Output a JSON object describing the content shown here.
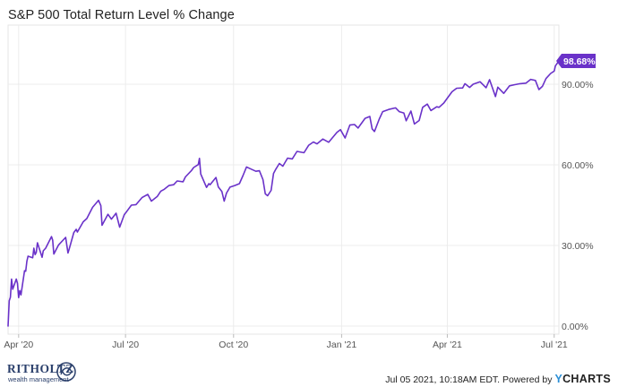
{
  "chart_data": {
    "type": "line",
    "title": "S&P 500 Total Return Level % Change",
    "xlabel": "",
    "ylabel": "",
    "x_start": "2020-03-23",
    "x_end": "2021-07-05",
    "x_ticks": [
      {
        "label": "Apr '20",
        "date": "2020-04-01"
      },
      {
        "label": "Jul '20",
        "date": "2020-07-01"
      },
      {
        "label": "Oct '20",
        "date": "2020-10-01"
      },
      {
        "label": "Jan '21",
        "date": "2021-01-01"
      },
      {
        "label": "Apr '21",
        "date": "2021-04-01"
      },
      {
        "label": "Jul '21",
        "date": "2021-07-01"
      }
    ],
    "y_ticks": [
      {
        "label": "0.00%",
        "value": 0
      },
      {
        "label": "30.00%",
        "value": 30
      },
      {
        "label": "60.00%",
        "value": 60
      },
      {
        "label": "90.00%",
        "value": 90
      }
    ],
    "ylim": [
      -3,
      112
    ],
    "grid": true,
    "line_color": "#6a32c9",
    "last_value_label": "98.68%",
    "series": [
      {
        "points": [
          [
            "2020-03-23",
            0.0
          ],
          [
            "2020-03-24",
            9.4
          ],
          [
            "2020-03-25",
            10.7
          ],
          [
            "2020-03-26",
            17.5
          ],
          [
            "2020-03-27",
            13.7
          ],
          [
            "2020-03-30",
            17.5
          ],
          [
            "2020-03-31",
            15.9
          ],
          [
            "2020-04-01",
            10.6
          ],
          [
            "2020-04-02",
            13.2
          ],
          [
            "2020-04-03",
            11.6
          ],
          [
            "2020-04-06",
            20.6
          ],
          [
            "2020-04-07",
            20.4
          ],
          [
            "2020-04-08",
            24.1
          ],
          [
            "2020-04-09",
            26.0
          ],
          [
            "2020-04-13",
            25.4
          ],
          [
            "2020-04-14",
            29.0
          ],
          [
            "2020-04-15",
            26.6
          ],
          [
            "2020-04-16",
            27.4
          ],
          [
            "2020-04-17",
            31.0
          ],
          [
            "2020-04-21",
            25.6
          ],
          [
            "2020-04-22",
            28.0
          ],
          [
            "2020-04-24",
            29.0
          ],
          [
            "2020-04-29",
            33.3
          ],
          [
            "2020-04-30",
            32.0
          ],
          [
            "2020-05-01",
            26.8
          ],
          [
            "2020-05-05",
            30.2
          ],
          [
            "2020-05-11",
            33.0
          ],
          [
            "2020-05-13",
            27.2
          ],
          [
            "2020-05-14",
            28.6
          ],
          [
            "2020-05-18",
            34.8
          ],
          [
            "2020-05-20",
            36.0
          ],
          [
            "2020-05-21",
            35.0
          ],
          [
            "2020-05-26",
            38.8
          ],
          [
            "2020-05-29",
            40.0
          ],
          [
            "2020-06-03",
            44.2
          ],
          [
            "2020-06-08",
            46.8
          ],
          [
            "2020-06-10",
            44.8
          ],
          [
            "2020-06-11",
            37.5
          ],
          [
            "2020-06-16",
            41.6
          ],
          [
            "2020-06-19",
            39.8
          ],
          [
            "2020-06-23",
            42.0
          ],
          [
            "2020-06-26",
            36.8
          ],
          [
            "2020-06-30",
            41.5
          ],
          [
            "2020-07-02",
            42.6
          ],
          [
            "2020-07-06",
            45.0
          ],
          [
            "2020-07-10",
            45.2
          ],
          [
            "2020-07-15",
            47.8
          ],
          [
            "2020-07-20",
            49.0
          ],
          [
            "2020-07-23",
            46.5
          ],
          [
            "2020-07-28",
            48.2
          ],
          [
            "2020-07-31",
            50.2
          ],
          [
            "2020-08-03",
            50.9
          ],
          [
            "2020-08-07",
            52.3
          ],
          [
            "2020-08-11",
            52.6
          ],
          [
            "2020-08-14",
            54.0
          ],
          [
            "2020-08-19",
            53.7
          ],
          [
            "2020-08-21",
            55.5
          ],
          [
            "2020-08-26",
            57.8
          ],
          [
            "2020-08-28",
            59.0
          ],
          [
            "2020-09-01",
            60.1
          ],
          [
            "2020-09-02",
            62.4
          ],
          [
            "2020-09-03",
            56.6
          ],
          [
            "2020-09-08",
            51.6
          ],
          [
            "2020-09-10",
            53.0
          ],
          [
            "2020-09-11",
            52.6
          ],
          [
            "2020-09-16",
            55.3
          ],
          [
            "2020-09-18",
            51.8
          ],
          [
            "2020-09-21",
            50.1
          ],
          [
            "2020-09-23",
            46.5
          ],
          [
            "2020-09-25",
            49.5
          ],
          [
            "2020-09-28",
            51.7
          ],
          [
            "2020-10-02",
            52.3
          ],
          [
            "2020-10-06",
            53.0
          ],
          [
            "2020-10-09",
            56.0
          ],
          [
            "2020-10-12",
            59.2
          ],
          [
            "2020-10-15",
            58.6
          ],
          [
            "2020-10-20",
            57.6
          ],
          [
            "2020-10-23",
            57.8
          ],
          [
            "2020-10-26",
            54.5
          ],
          [
            "2020-10-28",
            49.2
          ],
          [
            "2020-10-30",
            48.5
          ],
          [
            "2020-11-02",
            50.5
          ],
          [
            "2020-11-04",
            56.8
          ],
          [
            "2020-11-06",
            58.4
          ],
          [
            "2020-11-09",
            60.5
          ],
          [
            "2020-11-12",
            59.5
          ],
          [
            "2020-11-16",
            62.5
          ],
          [
            "2020-11-20",
            62.2
          ],
          [
            "2020-11-24",
            65.0
          ],
          [
            "2020-11-30",
            64.5
          ],
          [
            "2020-12-04",
            67.3
          ],
          [
            "2020-12-08",
            68.5
          ],
          [
            "2020-12-11",
            67.8
          ],
          [
            "2020-12-16",
            69.6
          ],
          [
            "2020-12-21",
            68.4
          ],
          [
            "2020-12-28",
            72.1
          ],
          [
            "2020-12-31",
            73.1
          ],
          [
            "2021-01-04",
            70.0
          ],
          [
            "2021-01-08",
            74.8
          ],
          [
            "2021-01-12",
            75.0
          ],
          [
            "2021-01-15",
            73.7
          ],
          [
            "2021-01-21",
            77.3
          ],
          [
            "2021-01-25",
            78.0
          ],
          [
            "2021-01-27",
            73.4
          ],
          [
            "2021-01-29",
            72.4
          ],
          [
            "2021-02-02",
            77.0
          ],
          [
            "2021-02-05",
            79.8
          ],
          [
            "2021-02-10",
            80.6
          ],
          [
            "2021-02-16",
            81.2
          ],
          [
            "2021-02-19",
            79.8
          ],
          [
            "2021-02-23",
            79.3
          ],
          [
            "2021-02-25",
            76.4
          ],
          [
            "2021-03-01",
            80.0
          ],
          [
            "2021-03-04",
            75.2
          ],
          [
            "2021-03-08",
            76.5
          ],
          [
            "2021-03-11",
            81.4
          ],
          [
            "2021-03-15",
            82.6
          ],
          [
            "2021-03-18",
            80.2
          ],
          [
            "2021-03-23",
            81.6
          ],
          [
            "2021-03-25",
            81.4
          ],
          [
            "2021-03-29",
            83.0
          ],
          [
            "2021-04-01",
            84.8
          ],
          [
            "2021-04-05",
            87.2
          ],
          [
            "2021-04-09",
            88.5
          ],
          [
            "2021-04-14",
            88.6
          ],
          [
            "2021-04-16",
            90.2
          ],
          [
            "2021-04-20",
            88.8
          ],
          [
            "2021-04-23",
            90.0
          ],
          [
            "2021-04-29",
            90.9
          ],
          [
            "2021-05-04",
            88.7
          ],
          [
            "2021-05-07",
            91.7
          ],
          [
            "2021-05-12",
            85.4
          ],
          [
            "2021-05-14",
            88.9
          ],
          [
            "2021-05-19",
            86.6
          ],
          [
            "2021-05-24",
            89.4
          ],
          [
            "2021-05-28",
            89.8
          ],
          [
            "2021-06-02",
            90.2
          ],
          [
            "2021-06-07",
            90.4
          ],
          [
            "2021-06-11",
            91.8
          ],
          [
            "2021-06-15",
            91.4
          ],
          [
            "2021-06-18",
            88.0
          ],
          [
            "2021-06-21",
            89.2
          ],
          [
            "2021-06-24",
            92.1
          ],
          [
            "2021-06-28",
            94.0
          ],
          [
            "2021-07-01",
            94.9
          ],
          [
            "2021-07-02",
            96.8
          ],
          [
            "2021-07-05",
            98.68
          ]
        ]
      }
    ]
  },
  "footer": {
    "logo_text": "RITHOLTZ",
    "logo_subtext": "wealth management",
    "credit": "Jul 05 2021, 10:18AM EDT. Powered by",
    "ycharts_y": "Y",
    "ycharts_rest": "CHARTS"
  }
}
